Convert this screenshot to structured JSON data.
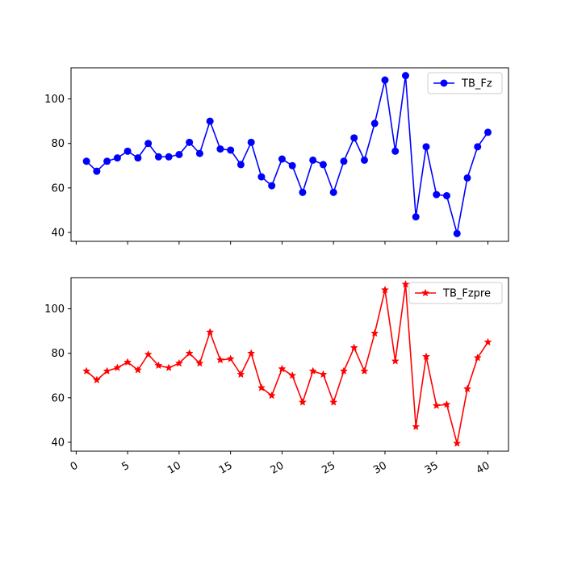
{
  "chart_data": [
    {
      "type": "line",
      "x": [
        1,
        2,
        3,
        4,
        5,
        6,
        7,
        8,
        9,
        10,
        11,
        12,
        13,
        14,
        15,
        16,
        17,
        18,
        19,
        20,
        21,
        22,
        23,
        24,
        25,
        26,
        27,
        28,
        29,
        30,
        31,
        32,
        33,
        34,
        35,
        36,
        37,
        38,
        39,
        40
      ],
      "series": [
        {
          "name": "TB_Fz",
          "color": "#0000ff",
          "marker": "circle",
          "values": [
            72,
            67.5,
            72,
            73.5,
            76.5,
            73.5,
            80,
            74,
            74,
            75,
            80.5,
            75.5,
            90,
            77.5,
            77,
            70.5,
            80.5,
            65,
            61,
            73,
            70,
            58,
            72.5,
            70.5,
            58,
            72,
            82.5,
            72.5,
            89,
            108.5,
            76.5,
            110.5,
            47,
            78.5,
            57,
            56.5,
            39.5,
            64.5,
            78.5,
            85
          ]
        }
      ],
      "xlim": [
        -0.5,
        42
      ],
      "ylim": [
        36,
        114
      ],
      "yticks": [
        40,
        60,
        80,
        100
      ],
      "xticks": [
        0,
        5,
        10,
        15,
        20,
        25,
        30,
        35,
        40
      ],
      "show_xtick_labels": false,
      "legend": "top-right",
      "grid": false
    },
    {
      "type": "line",
      "x": [
        1,
        2,
        3,
        4,
        5,
        6,
        7,
        8,
        9,
        10,
        11,
        12,
        13,
        14,
        15,
        16,
        17,
        18,
        19,
        20,
        21,
        22,
        23,
        24,
        25,
        26,
        27,
        28,
        29,
        30,
        31,
        32,
        33,
        34,
        35,
        36,
        37,
        38,
        39,
        40
      ],
      "series": [
        {
          "name": "TB_Fzpre",
          "color": "#ff0000",
          "marker": "star",
          "values": [
            72,
            68,
            72,
            73.5,
            76,
            72.5,
            79.5,
            74.5,
            73.5,
            75.5,
            80,
            75.5,
            89.5,
            77,
            77.5,
            70.5,
            80,
            64.5,
            61,
            73,
            70,
            58,
            72,
            70.5,
            58,
            72,
            82.5,
            72,
            89,
            108.5,
            76.5,
            111,
            47,
            78.5,
            56.5,
            57,
            39.5,
            64,
            78,
            85
          ]
        }
      ],
      "xlim": [
        -0.5,
        42
      ],
      "ylim": [
        36,
        114
      ],
      "yticks": [
        40,
        60,
        80,
        100
      ],
      "xticks": [
        0,
        5,
        10,
        15,
        20,
        25,
        30,
        35,
        40
      ],
      "show_xtick_labels": true,
      "legend": "top-right",
      "grid": false
    }
  ]
}
